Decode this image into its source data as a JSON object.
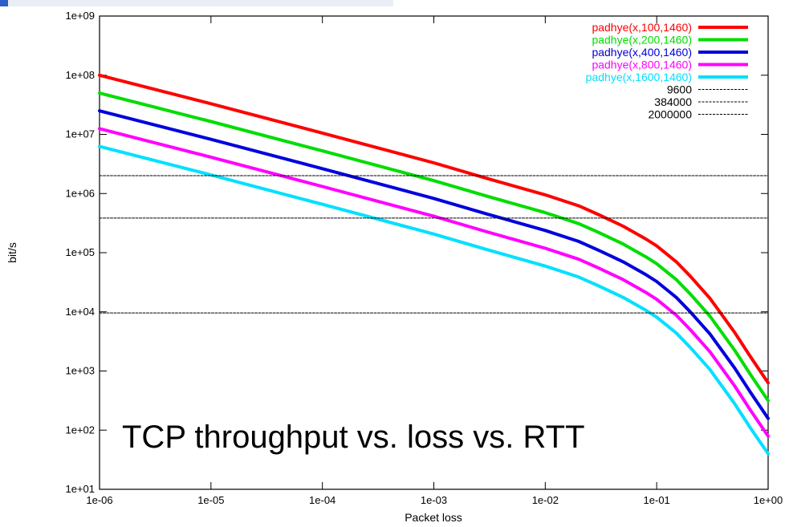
{
  "chart_data": {
    "type": "line",
    "title": "",
    "xlabel": "Packet loss",
    "ylabel": "bit/s",
    "xscale": "log",
    "yscale": "log",
    "xlim": [
      1e-06,
      1
    ],
    "ylim": [
      10,
      1000000000
    ],
    "grid": false,
    "legend_position": "top-right",
    "x_ticks": [
      "1e-06",
      "1e-05",
      "1e-04",
      "1e-03",
      "1e-02",
      "1e-01",
      "1e+00"
    ],
    "y_ticks": [
      "1e+01",
      "1e+02",
      "1e+03",
      "1e+04",
      "1e+05",
      "1e+06",
      "1e+07",
      "1e+08",
      "1e+09"
    ],
    "annotation": "TCP throughput vs. loss vs. RTT",
    "x": [
      1e-06,
      1e-05,
      0.0001,
      0.001,
      0.003,
      0.01,
      0.02,
      0.03,
      0.05,
      0.08,
      0.1,
      0.15,
      0.2,
      0.3,
      0.5,
      0.7,
      1.0
    ],
    "series": [
      {
        "name": "padhye(x,100,1460)",
        "color": "#ff0000",
        "style": "solid",
        "values": [
          100000000,
          33000000,
          10500000,
          3300000,
          1800000,
          950000,
          620000,
          440000,
          280000,
          170000,
          130000,
          70000,
          40000,
          17000,
          4500,
          1700,
          630
        ]
      },
      {
        "name": "padhye(x,200,1460)",
        "color": "#00dd00",
        "style": "solid",
        "values": [
          50000000,
          16500000,
          5250000,
          1650000,
          900000,
          475000,
          310000,
          220000,
          140000,
          85000,
          65000,
          35000,
          20000,
          8500,
          2250,
          850,
          315
        ]
      },
      {
        "name": "padhye(x,400,1460)",
        "color": "#0000dd",
        "style": "solid",
        "values": [
          25000000,
          8250000,
          2625000,
          825000,
          450000,
          237500,
          155000,
          110000,
          70000,
          42500,
          32500,
          17500,
          10000,
          4250,
          1125,
          425,
          158
        ]
      },
      {
        "name": "padhye(x,800,1460)",
        "color": "#ff00ff",
        "style": "solid",
        "values": [
          12500000,
          4125000,
          1312500,
          412500,
          225000,
          118750,
          77500,
          55000,
          35000,
          21250,
          16250,
          8750,
          5000,
          2125,
          562,
          212,
          79
        ]
      },
      {
        "name": "padhye(x,1600,1460)",
        "color": "#00e0ff",
        "style": "solid",
        "values": [
          6250000,
          2062500,
          656250,
          206250,
          112500,
          59375,
          38750,
          27500,
          17500,
          10625,
          8125,
          4375,
          2500,
          1062,
          281,
          106,
          40
        ]
      },
      {
        "name": "9600",
        "color": "#000000",
        "style": "dashed",
        "values": [
          9600,
          9600,
          9600,
          9600,
          9600,
          9600,
          9600,
          9600,
          9600,
          9600,
          9600,
          9600,
          9600,
          9600,
          9600,
          9600,
          9600
        ]
      },
      {
        "name": "384000",
        "color": "#000000",
        "style": "dashed",
        "values": [
          384000,
          384000,
          384000,
          384000,
          384000,
          384000,
          384000,
          384000,
          384000,
          384000,
          384000,
          384000,
          384000,
          384000,
          384000,
          384000,
          384000
        ]
      },
      {
        "name": "2000000",
        "color": "#000000",
        "style": "dashed",
        "values": [
          2000000,
          2000000,
          2000000,
          2000000,
          2000000,
          2000000,
          2000000,
          2000000,
          2000000,
          2000000,
          2000000,
          2000000,
          2000000,
          2000000,
          2000000,
          2000000,
          2000000
        ]
      }
    ]
  }
}
